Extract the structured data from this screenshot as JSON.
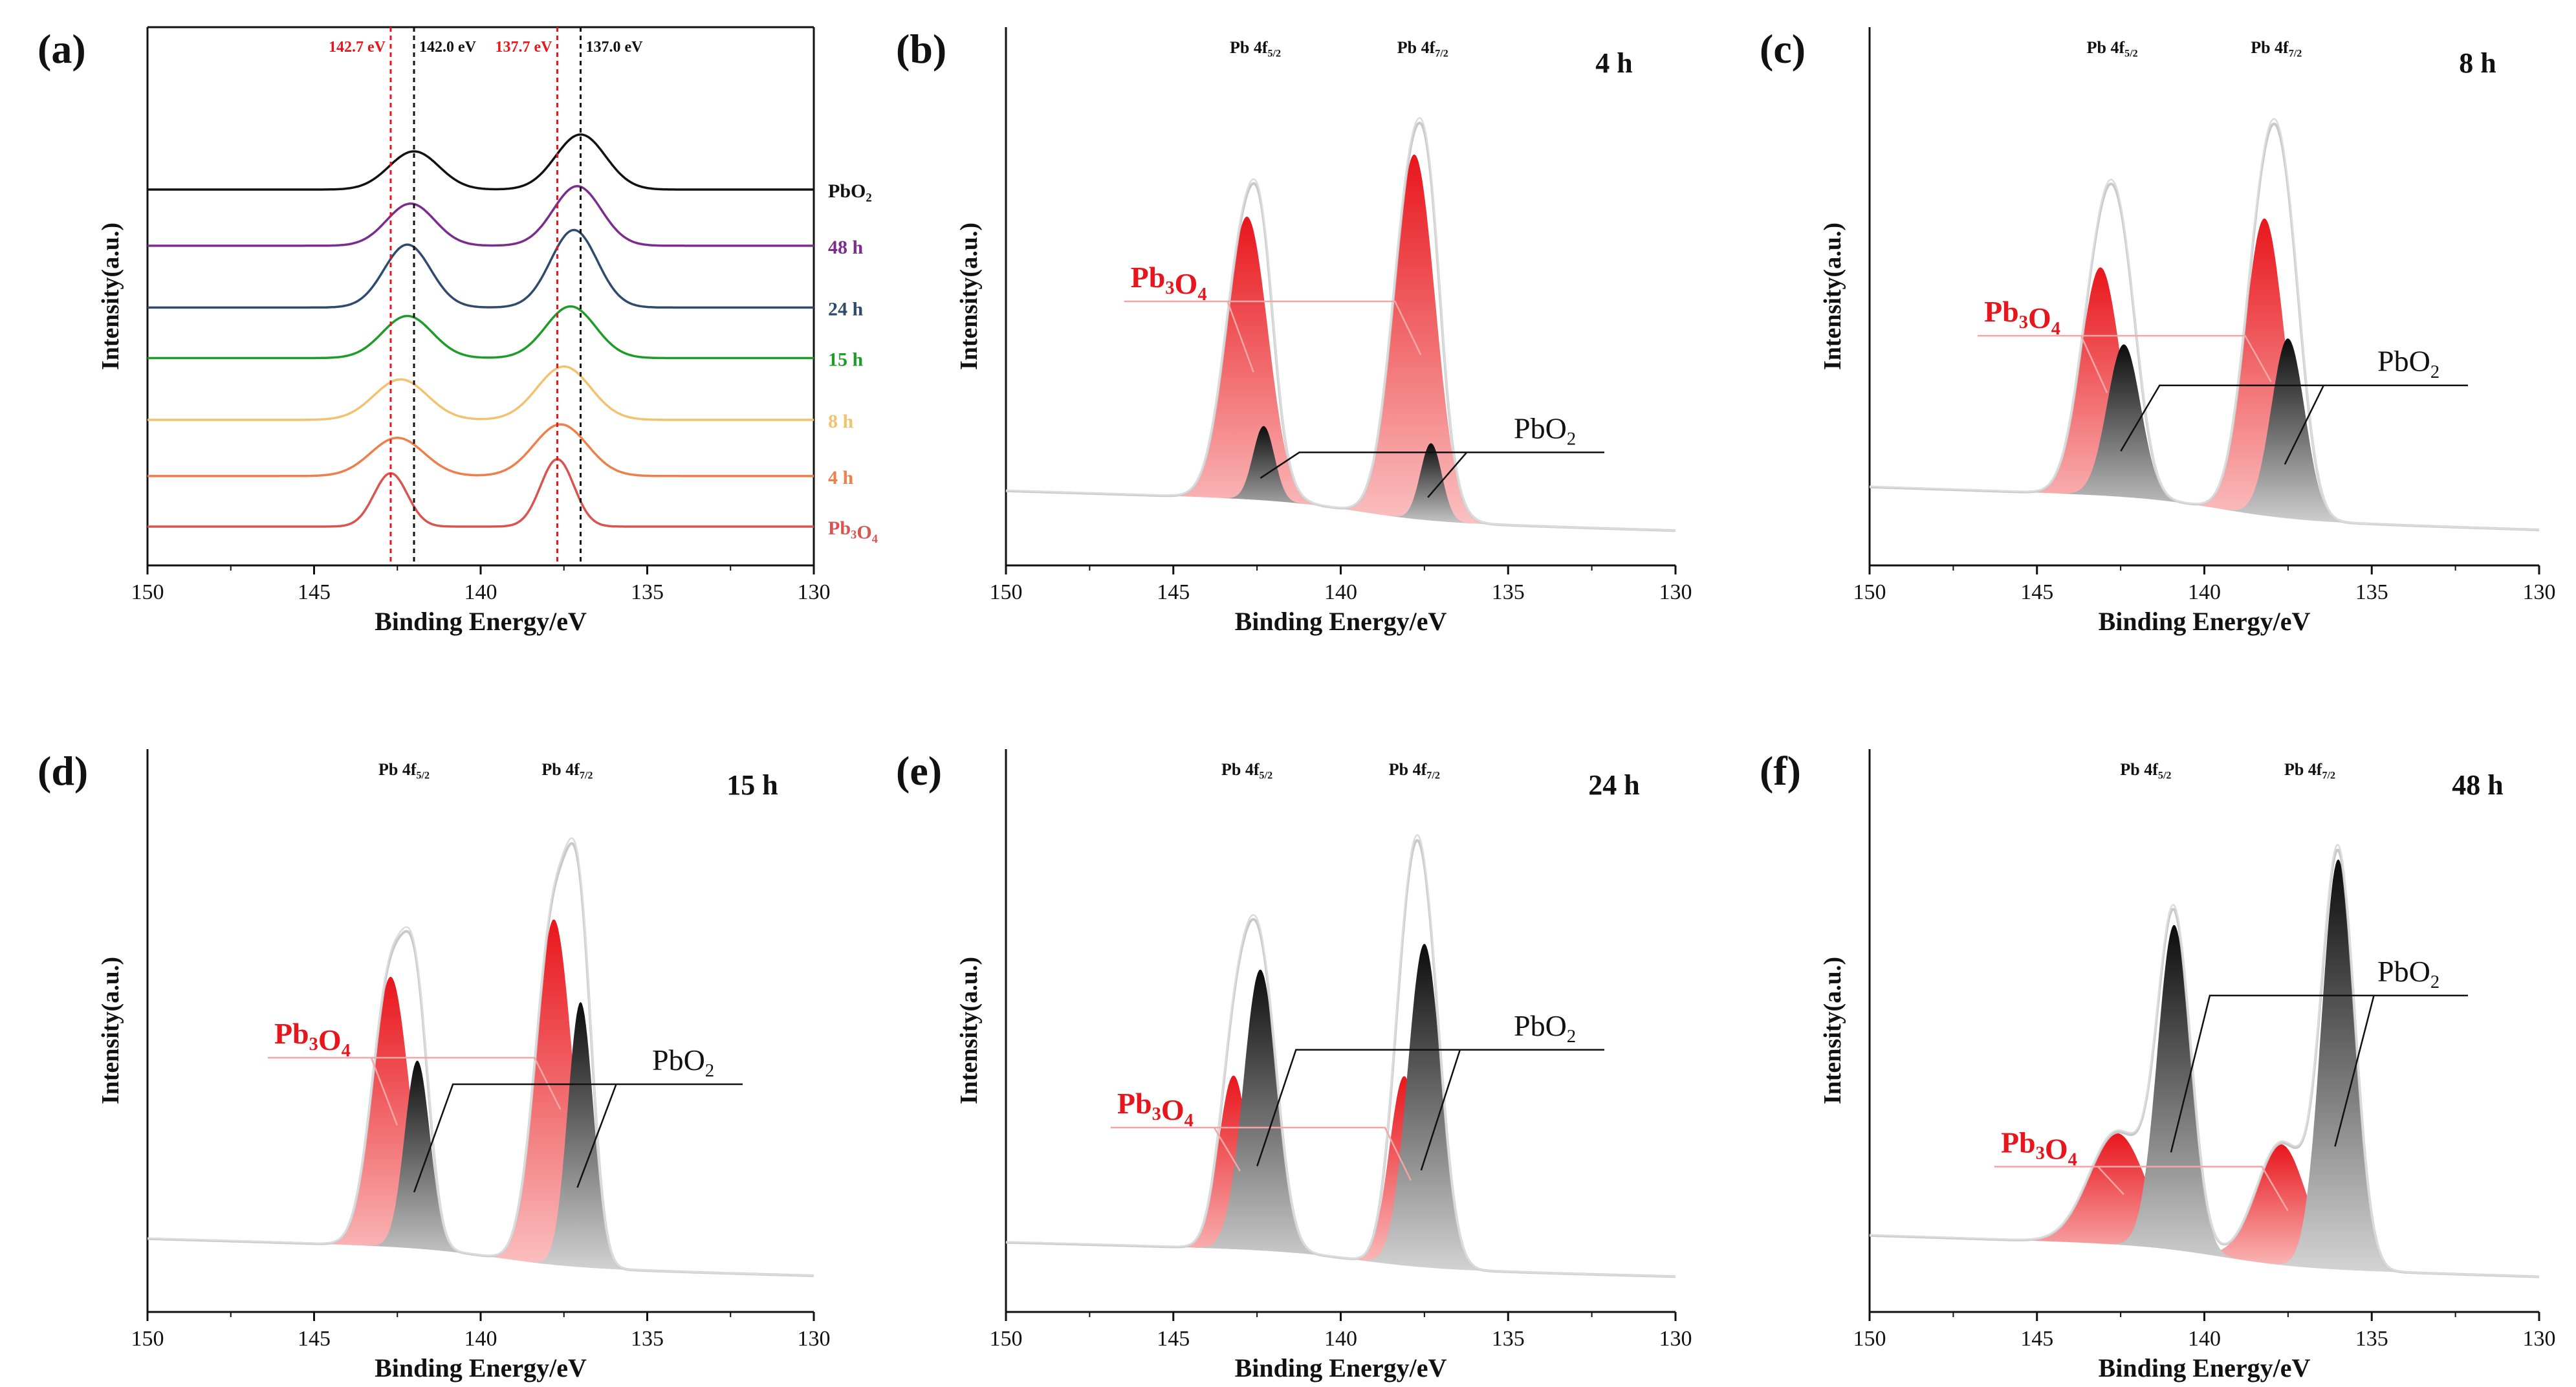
{
  "colors": {
    "pb3o4": "#e8161c",
    "pbo2": "#111111",
    "envelope": "#c9c9c9",
    "baseline": "#b9b9b9",
    "annot_pb3o4": "#f3a6a6",
    "ref_red": "#e8161c",
    "ref_black": "#111111"
  },
  "chart_data": [
    {
      "id": "a",
      "panel": "(a)",
      "type": "line",
      "xlabel": "Binding Energy/eV",
      "ylabel": "Intensity(a.u.)",
      "xlim": [
        150,
        130
      ],
      "xticks": [
        150,
        145,
        140,
        135,
        130
      ],
      "reference_lines": [
        {
          "x": 142.7,
          "label": "142.7 eV",
          "color": "#e8161c"
        },
        {
          "x": 142.0,
          "label": "142.0 eV",
          "color": "#111111"
        },
        {
          "x": 137.7,
          "label": "137.7 eV",
          "color": "#e8161c"
        },
        {
          "x": 137.0,
          "label": "137.0 eV",
          "color": "#111111"
        }
      ],
      "series": [
        {
          "name": "PbO2",
          "label_main": "PbO",
          "label_sub": "2",
          "label_tail": "",
          "color": "#111111",
          "offset": 6.0,
          "peaks": [
            [
              142.0,
              0.68,
              0.75
            ],
            [
              137.0,
              0.98,
              0.75
            ]
          ]
        },
        {
          "name": "48 h",
          "label_main": "48 h",
          "label_sub": "",
          "label_tail": "",
          "color": "#7b2d8e",
          "offset": 5.0,
          "peaks": [
            [
              142.1,
              0.75,
              0.72
            ],
            [
              137.1,
              1.06,
              0.72
            ]
          ]
        },
        {
          "name": "24 h",
          "label_main": "24 h",
          "label_sub": "",
          "label_tail": "",
          "color": "#2e4a6e",
          "offset": 3.9,
          "peaks": [
            [
              142.2,
              1.12,
              0.7
            ],
            [
              137.2,
              1.38,
              0.7
            ]
          ]
        },
        {
          "name": "15 h",
          "label_main": "15 h",
          "label_sub": "",
          "label_tail": "",
          "color": "#1e9c2a",
          "offset": 3.0,
          "peaks": [
            [
              142.2,
              0.75,
              0.75
            ],
            [
              137.3,
              0.92,
              0.75
            ]
          ]
        },
        {
          "name": "8 h",
          "label_main": "8 h",
          "label_sub": "",
          "label_tail": "",
          "color": "#f3c270",
          "offset": 1.9,
          "peaks": [
            [
              142.4,
              0.72,
              0.8
            ],
            [
              137.5,
              0.95,
              0.8
            ]
          ]
        },
        {
          "name": "4 h",
          "label_main": "4 h",
          "label_sub": "",
          "label_tail": "",
          "color": "#ee7f4b",
          "offset": 0.9,
          "peaks": [
            [
              142.5,
              0.68,
              0.8
            ],
            [
              137.6,
              0.92,
              0.8
            ]
          ]
        },
        {
          "name": "Pb3O4",
          "label_main": "Pb",
          "label_sub": "3",
          "label_tail": "O",
          "label_sub2": "4",
          "color": "#d9534f",
          "offset": 0.0,
          "peaks": [
            [
              142.7,
              0.95,
              0.5
            ],
            [
              137.7,
              1.2,
              0.5
            ]
          ]
        }
      ]
    },
    {
      "id": "b",
      "panel": "(b)",
      "type": "area",
      "time": "4 h",
      "xlabel": "Binding Energy/eV",
      "ylabel": "Intensity(a.u.)",
      "xlim": [
        150,
        130
      ],
      "xticks": [
        150,
        145,
        140,
        135,
        130
      ],
      "peak_label_52": "Pb 4f",
      "peak_label_52_sub": "5/2",
      "peak_label_72": "Pb 4f",
      "peak_label_72_sub": "7/2",
      "label_pb3o4": "Pb3O4",
      "label_pbo2": "PbO2",
      "baseline": {
        "left": 0.3,
        "right": 0.06
      },
      "components": {
        "pb3o4": [
          [
            142.8,
            1.9,
            0.62
          ],
          [
            137.8,
            2.45,
            0.62
          ]
        ],
        "pbo2": [
          [
            142.3,
            0.5,
            0.32
          ],
          [
            137.3,
            0.52,
            0.32
          ]
        ]
      }
    },
    {
      "id": "c",
      "panel": "(c)",
      "type": "area",
      "time": "8 h",
      "xlabel": "Binding Energy/eV",
      "ylabel": "Intensity(a.u.)",
      "xlim": [
        150,
        130
      ],
      "xticks": [
        150,
        145,
        140,
        135,
        130
      ],
      "peak_label_52": "Pb 4f",
      "peak_label_52_sub": "5/2",
      "peak_label_72": "Pb 4f",
      "peak_label_72_sub": "7/2",
      "label_pb3o4": "Pb3O4",
      "label_pbo2": "PbO2",
      "baseline": {
        "left": 0.3,
        "right": 0.06
      },
      "components": {
        "pb3o4": [
          [
            143.1,
            1.42,
            0.6
          ],
          [
            138.2,
            1.85,
            0.6
          ]
        ],
        "pbo2": [
          [
            142.4,
            0.95,
            0.5
          ],
          [
            137.5,
            1.12,
            0.5
          ]
        ]
      }
    },
    {
      "id": "d",
      "panel": "(d)",
      "type": "area",
      "time": "15 h",
      "xlabel": "Binding Energy/eV",
      "ylabel": "Intensity(a.u.)",
      "xlim": [
        150,
        130
      ],
      "xticks": [
        150,
        145,
        140,
        135,
        130
      ],
      "peak_label_52": "Pb 4f",
      "peak_label_52_sub": "5/2",
      "peak_label_72": "Pb 4f",
      "peak_label_72_sub": "7/2",
      "label_pb3o4": "Pb3O4",
      "label_pbo2": "PbO2",
      "baseline": {
        "left": 0.25,
        "right": 0.06
      },
      "components": {
        "pb3o4": [
          [
            142.7,
            1.58,
            0.55
          ],
          [
            137.8,
            2.02,
            0.55
          ]
        ],
        "pbo2": [
          [
            141.9,
            1.1,
            0.38
          ],
          [
            137.0,
            1.55,
            0.38
          ]
        ]
      }
    },
    {
      "id": "e",
      "panel": "(e)",
      "type": "area",
      "time": "24 h",
      "xlabel": "Binding Energy/eV",
      "ylabel": "Intensity(a.u.)",
      "xlim": [
        150,
        130
      ],
      "xticks": [
        150,
        145,
        140,
        135,
        130
      ],
      "peak_label_52": "Pb 4f",
      "peak_label_52_sub": "5/2",
      "peak_label_72": "Pb 4f",
      "peak_label_72_sub": "7/2",
      "label_pb3o4": "Pb3O4",
      "label_pbo2": "PbO2",
      "baseline": {
        "left": 0.25,
        "right": 0.06
      },
      "components": {
        "pb3o4": [
          [
            143.2,
            1.1,
            0.45
          ],
          [
            138.1,
            1.2,
            0.45
          ]
        ],
        "pbo2": [
          [
            142.4,
            1.78,
            0.5
          ],
          [
            137.5,
            2.05,
            0.5
          ]
        ]
      }
    },
    {
      "id": "f",
      "panel": "(f)",
      "type": "area",
      "time": "48 h",
      "xlabel": "Binding Energy/eV",
      "ylabel": "Intensity(a.u.)",
      "xlim": [
        150,
        130
      ],
      "xticks": [
        150,
        145,
        140,
        135,
        130
      ],
      "peak_label_52": "Pb 4f",
      "peak_label_52_sub": "5/2",
      "peak_label_72": "Pb 4f",
      "peak_label_72_sub": "7/2",
      "label_pb3o4": "Pb3O4",
      "label_pbo2": "PbO2",
      "baseline": {
        "left": 0.3,
        "right": 0.06
      },
      "components": {
        "pb3o4": [
          [
            142.6,
            0.72,
            0.85
          ],
          [
            137.7,
            0.78,
            0.75
          ]
        ],
        "pbo2": [
          [
            140.9,
            2.1,
            0.5
          ],
          [
            136.0,
            2.65,
            0.5
          ]
        ]
      }
    }
  ]
}
